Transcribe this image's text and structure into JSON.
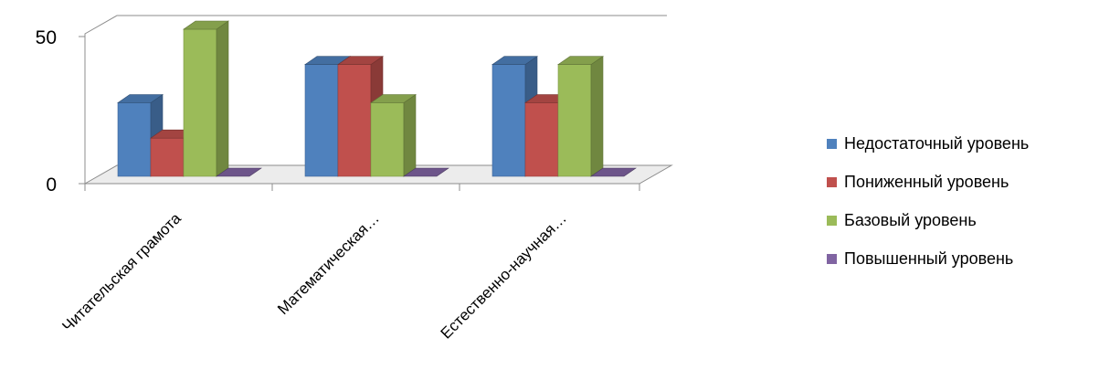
{
  "chart_data": {
    "type": "bar",
    "title": "",
    "xlabel": "",
    "ylabel": "",
    "ylim": [
      0,
      50
    ],
    "yticks": [
      0,
      50
    ],
    "categories": [
      "Читательская грамота",
      "Математическая…",
      "Естественно-научная…"
    ],
    "series": [
      {
        "name": "Недостаточный уровень",
        "color": "#4F81BD",
        "values": [
          25,
          38,
          38
        ]
      },
      {
        "name": "Пониженный уровень",
        "color": "#C0504D",
        "values": [
          13,
          38,
          25
        ]
      },
      {
        "name": "Базовый уровень",
        "color": "#9BBB59",
        "values": [
          50,
          25,
          38
        ]
      },
      {
        "name": "Повышенный уровень",
        "color": "#8064A2",
        "values": [
          0,
          0,
          0
        ]
      }
    ],
    "style": "3d-clustered-column",
    "grid": false,
    "legend_position": "right"
  }
}
